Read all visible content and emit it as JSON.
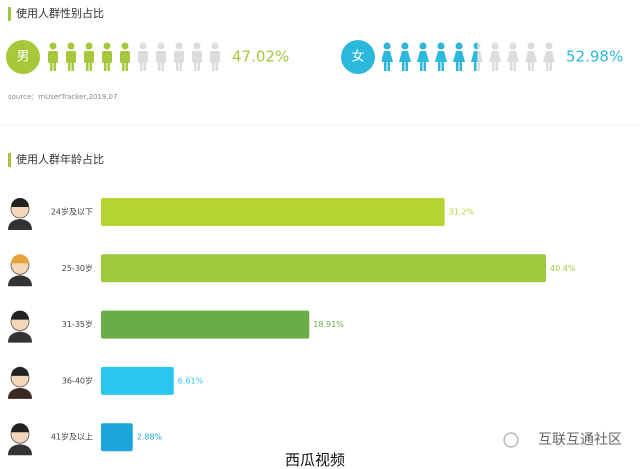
{
  "chart_data": [
    {
      "type": "pictogram",
      "title": "使用人群性别占比",
      "source": "source：mUserTracker,2019.07",
      "categories": [
        "男",
        "女"
      ],
      "values": [
        47.02,
        52.98
      ],
      "value_labels": [
        "47.02%",
        "52.98%"
      ],
      "colors": [
        "#a6c83a",
        "#2bb8dc"
      ],
      "xlim": [
        0,
        100
      ]
    },
    {
      "type": "bar",
      "title": "使用人群年龄占比",
      "categories": [
        "24岁及以下",
        "25-30岁",
        "31-35岁",
        "36-40岁",
        "41岁及以上"
      ],
      "values": [
        31.2,
        40.4,
        18.91,
        6.61,
        2.88
      ],
      "value_labels": [
        "31.2%",
        "40.4%",
        "18.91%",
        "6.61%",
        "2.88%"
      ],
      "colors": [
        "#b6d334",
        "#9ec83d",
        "#6aac45",
        "#2ac6ef",
        "#1aa6dc"
      ],
      "xlim": [
        0,
        40.4
      ]
    }
  ],
  "watermark": {
    "app": "西瓜视频",
    "community": "互联互通社区"
  }
}
